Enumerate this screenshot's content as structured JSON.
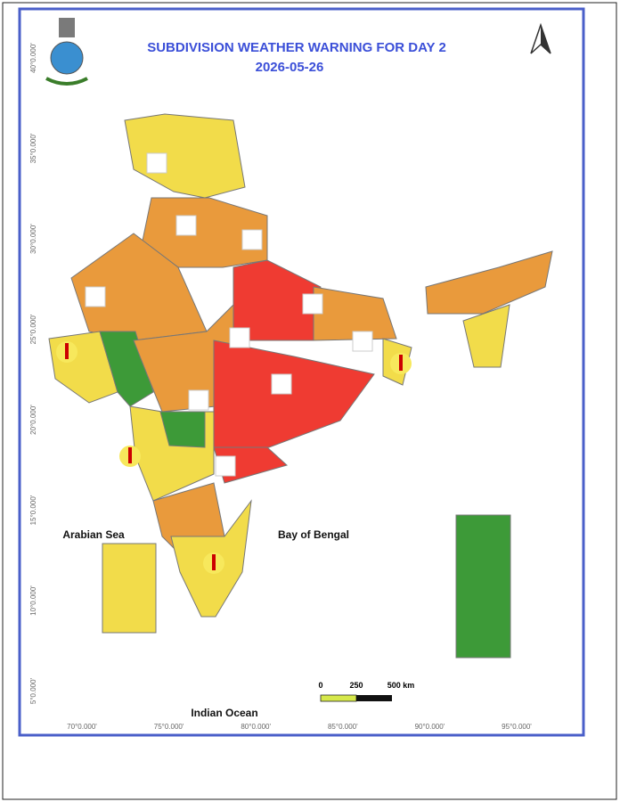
{
  "header": {
    "title": "SUBDIVISION WEATHER WARNING FOR DAY 2",
    "date": "2026-05-26"
  },
  "labels": {
    "sea_west": "Arabian Sea",
    "sea_east": "Bay of Bengal",
    "ocean": "Indian Ocean"
  },
  "axes": {
    "latitude": [
      "40°0.000'",
      "35°0.000'",
      "30°0.000'",
      "25°0.000'",
      "20°0.000'",
      "15°0.000'",
      "10°0.000'",
      "5°0.000'"
    ],
    "longitude": [
      "70°0.000'",
      "75°0.000'",
      "80°0.000'",
      "85°0.000'",
      "90°0.000'",
      "95°0.000'"
    ]
  },
  "scale": {
    "labels": [
      "0",
      "250",
      "500 km"
    ]
  }
}
